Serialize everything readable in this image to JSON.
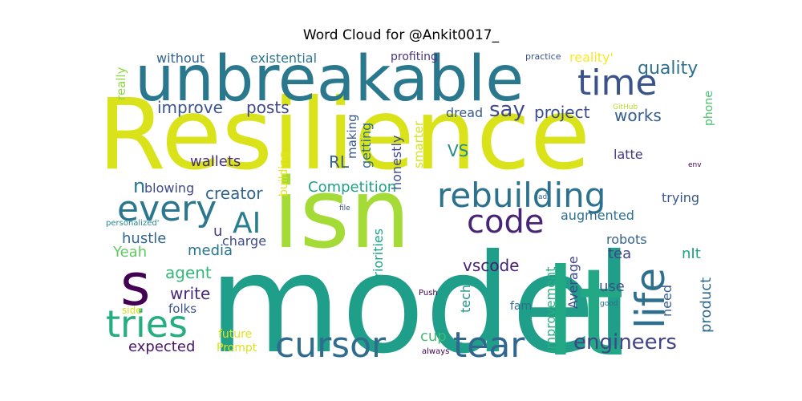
{
  "title": "Word Cloud for @Ankit0017_",
  "words": [
    {
      "text": "model",
      "color": "#1f9e89"
    },
    {
      "text": "Resilience",
      "color": "#dae319"
    },
    {
      "text": "unbreakable",
      "color": "#2a788e"
    },
    {
      "text": "isn",
      "color": "#a5db36"
    },
    {
      "text": "lt",
      "color": "#22a884"
    },
    {
      "text": "rebuilding",
      "color": "#2c728e"
    },
    {
      "text": "cursor",
      "color": "#2f6c8e"
    },
    {
      "text": "tear",
      "color": "#31668e"
    },
    {
      "text": "s",
      "color": "#440154"
    },
    {
      "text": "tries",
      "color": "#26ad81"
    },
    {
      "text": "time",
      "color": "#3b528b"
    },
    {
      "text": "code",
      "color": "#482475"
    },
    {
      "text": "every",
      "color": "#2a778e"
    },
    {
      "text": "AI",
      "color": "#287d8e"
    },
    {
      "text": "life",
      "color": "#2e6e8e"
    },
    {
      "text": "engineers",
      "color": "#414487"
    },
    {
      "text": "say",
      "color": "#3e4a89"
    },
    {
      "text": "quality",
      "color": "#2d708e"
    },
    {
      "text": "project",
      "color": "#3c4f8a"
    },
    {
      "text": "works",
      "color": "#365d8d"
    },
    {
      "text": "improve",
      "color": "#3a548c"
    },
    {
      "text": "posts",
      "color": "#3f4788"
    },
    {
      "text": "reality'",
      "color": "#fde725"
    },
    {
      "text": "without",
      "color": "#33638d"
    },
    {
      "text": "existential",
      "color": "#2b748e"
    },
    {
      "text": "profiting",
      "color": "#46337f"
    },
    {
      "text": "practice",
      "color": "#3b528b"
    },
    {
      "text": "really",
      "color": "#90d743"
    },
    {
      "text": "dread",
      "color": "#365c8d"
    },
    {
      "text": "GitHub",
      "color": "#b5de2b"
    },
    {
      "text": "phone",
      "color": "#4ac16d"
    },
    {
      "text": "making",
      "color": "#38598c"
    },
    {
      "text": "getting",
      "color": "#2e6f8e"
    },
    {
      "text": "honestly",
      "color": "#3f4889"
    },
    {
      "text": "smarter",
      "color": "#d8e219"
    },
    {
      "text": "building",
      "color": "#e5e419"
    },
    {
      "text": "VS",
      "color": "#228c8d"
    },
    {
      "text": "latte",
      "color": "#453882"
    },
    {
      "text": "env",
      "color": "#440154"
    },
    {
      "text": "wallets",
      "color": "#472f7d"
    },
    {
      "text": "RL",
      "color": "#34618d"
    },
    {
      "text": "n",
      "color": "#2a768e"
    },
    {
      "text": "blowing",
      "color": "#3e4989"
    },
    {
      "text": "Competition",
      "color": "#1fa187"
    },
    {
      "text": "creator",
      "color": "#31668e"
    },
    {
      "text": "trying",
      "color": "#39558c"
    },
    {
      "text": "ads",
      "color": "#31678e"
    },
    {
      "text": "file",
      "color": "#3b528b"
    },
    {
      "text": "u",
      "color": "#453882"
    },
    {
      "text": "personalized'",
      "color": "#25848e"
    },
    {
      "text": "Priorities",
      "color": "#1fa188"
    },
    {
      "text": "augmented",
      "color": "#2c718e"
    },
    {
      "text": "hustle",
      "color": "#31678e"
    },
    {
      "text": "charge",
      "color": "#3e4989"
    },
    {
      "text": "media",
      "color": "#2b748e"
    },
    {
      "text": "vscode",
      "color": "#481f70"
    },
    {
      "text": "robots",
      "color": "#33638d"
    },
    {
      "text": "Yeah",
      "color": "#60ca60"
    },
    {
      "text": "agent",
      "color": "#35b779"
    },
    {
      "text": "improvement",
      "color": "#29af7f"
    },
    {
      "text": "tea",
      "color": "#404588"
    },
    {
      "text": "nIt",
      "color": "#1fa188"
    },
    {
      "text": "write",
      "color": "#482979"
    },
    {
      "text": "Average",
      "color": "#3f4788"
    },
    {
      "text": "use",
      "color": "#3b528b"
    },
    {
      "text": "tech",
      "color": "#20928c"
    },
    {
      "text": "need",
      "color": "#365d8d"
    },
    {
      "text": "product",
      "color": "#2f6b8e"
    },
    {
      "text": "Push",
      "color": "#440154"
    },
    {
      "text": "good",
      "color": "#2d718e"
    },
    {
      "text": "side",
      "color": "#d2e21b"
    },
    {
      "text": "folks",
      "color": "#3a538b"
    },
    {
      "text": "fam",
      "color": "#2e6e8e"
    },
    {
      "text": "future",
      "color": "#e2e418"
    },
    {
      "text": "Prompt",
      "color": "#dde318"
    },
    {
      "text": "cup",
      "color": "#3fbc73"
    },
    {
      "text": "expected",
      "color": "#481769"
    },
    {
      "text": "always",
      "color": "#440154"
    }
  ]
}
